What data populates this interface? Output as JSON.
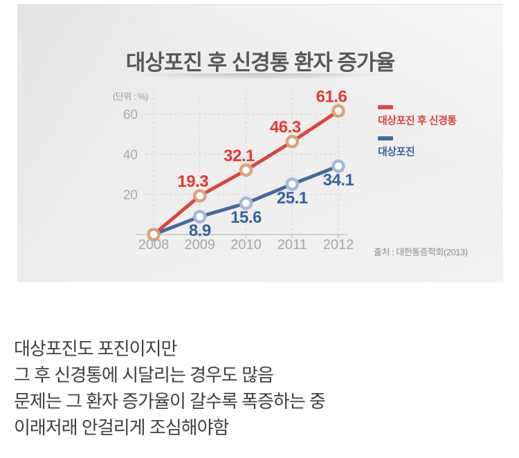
{
  "infographic": {
    "title": "대상포진 후 신경통 환자 증가율",
    "unit_label": "(단위 : %)",
    "source": "출처 : 대한통증학회(2013)",
    "legend": [
      {
        "label": "대상포진 후 신경통",
        "color": "#dd4a43",
        "text_color": "#d9453e"
      },
      {
        "label": "대상포진",
        "color": "#44699e",
        "text_color": "#35629e"
      }
    ],
    "colors": {
      "panel_bg": "#efeeee",
      "title": "#57585a",
      "axis_text": "#a7a7a7",
      "grid": "#d9d3d0",
      "baseline": "#c6c6c6"
    }
  },
  "chart_data": {
    "type": "line",
    "title": "대상포진 후 신경통 환자 증가율",
    "unit": "(단위 : %)",
    "x": [
      "2008",
      "2009",
      "2010",
      "2011",
      "2012"
    ],
    "series": [
      {
        "name": "대상포진 후 신경통",
        "values": [
          0,
          19.3,
          32.1,
          46.3,
          61.6
        ],
        "line_color": "#e0423b",
        "marker_ring": "#dda27a",
        "label_color": "#e03a33"
      },
      {
        "name": "대상포진",
        "values": [
          0,
          8.9,
          15.6,
          25.1,
          34.1
        ],
        "line_color": "#44699e",
        "marker_ring": "#a3b9d8",
        "label_color": "#35629e"
      }
    ],
    "yticks": [
      20,
      40,
      60
    ],
    "ylim": [
      0,
      68
    ],
    "grid": "dashed",
    "legend_position": "right",
    "source": "출처 : 대한통증학회(2013)",
    "notes": "2008 baseline points (0%) are unlabeled"
  },
  "caption": {
    "lines": [
      "대상포진도 포진이지만",
      "그 후 신경통에 시달리는 경우도 많음",
      "문제는 그 환자 증가율이 갈수록 폭증하는 중",
      "이래저래 안걸리게 조심해야함"
    ]
  }
}
